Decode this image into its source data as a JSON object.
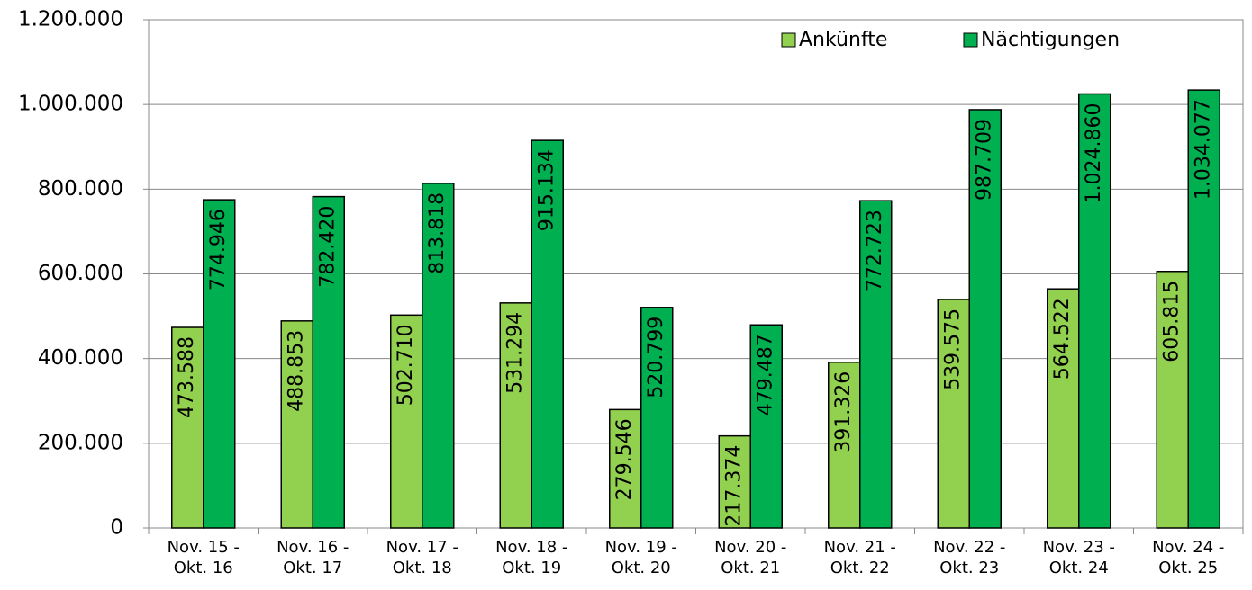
{
  "chart_data": {
    "type": "bar",
    "categories": [
      "Nov. 15 -\nOkt. 16",
      "Nov. 16 -\nOkt. 17",
      "Nov. 17 -\nOkt. 18",
      "Nov. 18 -\nOkt. 19",
      "Nov. 19 -\nOkt. 20",
      "Nov. 20 -\nOkt. 21",
      "Nov. 21 -\nOkt. 22",
      "Nov. 22 -\nOkt. 23",
      "Nov. 23 -\nOkt. 24",
      "Nov. 24 -\nOkt. 25"
    ],
    "series": [
      {
        "name": "Ankünfte",
        "color": "#92d050",
        "values": [
          473588,
          488853,
          502710,
          531294,
          279546,
          217374,
          391326,
          539575,
          564522,
          605815
        ],
        "value_labels": [
          "473.588",
          "488.853",
          "502.710",
          "531.294",
          "279.546",
          "217.374",
          "391.326",
          "539.575",
          "564.522",
          "605.815"
        ]
      },
      {
        "name": "Nächtigungen",
        "color": "#00b050",
        "values": [
          774946,
          782420,
          813818,
          915134,
          520799,
          479487,
          772723,
          987709,
          1024860,
          1034077
        ],
        "value_labels": [
          "774.946",
          "782.420",
          "813.818",
          "915.134",
          "520.799",
          "479.487",
          "772.723",
          "987.709",
          "1.024.860",
          "1.034.077"
        ]
      }
    ],
    "ylim": [
      0,
      1200000
    ],
    "yticks": [
      0,
      {
        "value": 200000,
        "label": "200.000"
      },
      {
        "value": 400000,
        "label": "400.000"
      },
      {
        "value": 600000,
        "label": "600.000"
      },
      {
        "value": 800000,
        "label": "800.000"
      },
      {
        "value": 1000000,
        "label": "1.000.000"
      },
      {
        "value": 1200000,
        "label": "1.200.000"
      }
    ],
    "grid": true,
    "legend": "top-right"
  }
}
